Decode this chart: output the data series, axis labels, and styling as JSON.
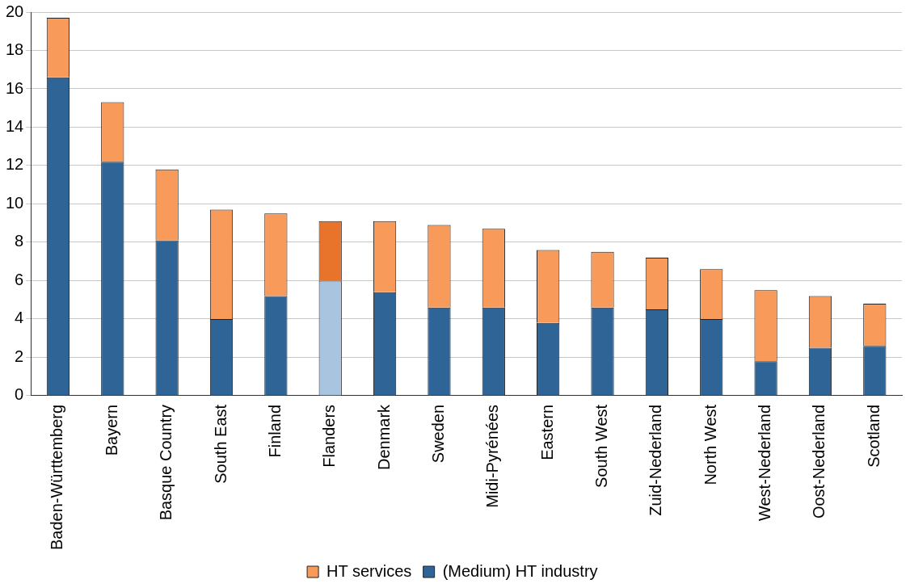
{
  "chart_data": {
    "type": "bar",
    "stacked": true,
    "categories": [
      "Baden-Württemberg",
      "Bayern",
      "Basque Country",
      "South East",
      "Finland",
      "Flanders",
      "Denmark",
      "Sweden",
      "Midi-Pyrénées",
      "Eastern",
      "South West",
      "Zuid-Nederland",
      "North West",
      "West-Nederland",
      "Oost-Nederland",
      "Scotland"
    ],
    "series": [
      {
        "name": "(Medium) HT industry",
        "color": "#2e6496",
        "colors": [
          "#2e6496",
          "#2e6496",
          "#2e6496",
          "#2e6496",
          "#2e6496",
          "#a9c4df",
          "#2e6496",
          "#2e6496",
          "#2e6496",
          "#2e6496",
          "#2e6496",
          "#2e6496",
          "#2e6496",
          "#2e6496",
          "#2e6496",
          "#2e6496"
        ],
        "values": [
          16.6,
          12.2,
          8.1,
          4.0,
          5.2,
          6.0,
          5.4,
          4.6,
          4.6,
          3.8,
          4.6,
          4.5,
          4.0,
          1.8,
          2.5,
          2.6
        ]
      },
      {
        "name": "HT services",
        "color": "#f79a5a",
        "colors": [
          "#f79a5a",
          "#f79a5a",
          "#f79a5a",
          "#f79a5a",
          "#f79a5a",
          "#e8732b",
          "#f79a5a",
          "#f79a5a",
          "#f79a5a",
          "#f79a5a",
          "#f79a5a",
          "#f79a5a",
          "#f79a5a",
          "#f79a5a",
          "#f79a5a",
          "#f79a5a"
        ],
        "values": [
          3.1,
          3.1,
          3.7,
          5.7,
          4.3,
          3.1,
          3.7,
          4.3,
          4.1,
          3.8,
          2.9,
          2.7,
          2.6,
          3.7,
          2.7,
          2.2
        ]
      }
    ],
    "ylim": [
      0,
      20
    ],
    "yticks": [
      0,
      2,
      4,
      6,
      8,
      10,
      12,
      14,
      16,
      18,
      20
    ],
    "grid": "y",
    "legend": "bottom"
  }
}
